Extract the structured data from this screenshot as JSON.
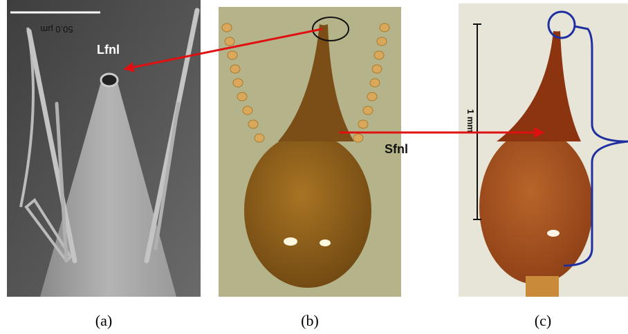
{
  "panels": [
    {
      "caption": "(a)",
      "scale_bar": "50.0 µm",
      "label": "Lfnl"
    },
    {
      "caption": "(b)",
      "label": "Sfnl"
    },
    {
      "caption": "(c)",
      "scale_bar": "1 mm"
    }
  ]
}
